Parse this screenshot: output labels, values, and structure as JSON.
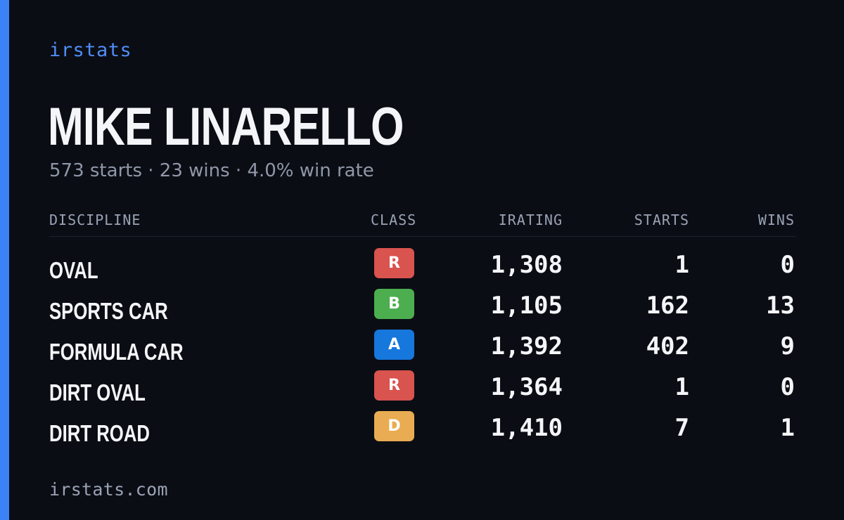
{
  "brand": "irstats",
  "driver": {
    "name": "MIKE LINARELLO",
    "summary": "573 starts · 23 wins · 4.0% win rate"
  },
  "table": {
    "headers": {
      "discipline": "DISCIPLINE",
      "class": "CLASS",
      "irating": "IRATING",
      "starts": "STARTS",
      "wins": "WINS"
    },
    "rows": [
      {
        "discipline": "OVAL",
        "class": "R",
        "class_color": "#d9534f",
        "irating": "1,308",
        "starts": "1",
        "wins": "0"
      },
      {
        "discipline": "SPORTS CAR",
        "class": "B",
        "class_color": "#4cae4f",
        "irating": "1,105",
        "starts": "162",
        "wins": "13"
      },
      {
        "discipline": "FORMULA CAR",
        "class": "A",
        "class_color": "#1677dd",
        "irating": "1,392",
        "starts": "402",
        "wins": "9"
      },
      {
        "discipline": "DIRT OVAL",
        "class": "R",
        "class_color": "#d9534f",
        "irating": "1,364",
        "starts": "1",
        "wins": "0"
      },
      {
        "discipline": "DIRT ROAD",
        "class": "D",
        "class_color": "#e9ac52",
        "irating": "1,410",
        "starts": "7",
        "wins": "1"
      }
    ]
  },
  "footer": "irstats.com",
  "colors": {
    "background": "#0b0d14",
    "accent": "#3b82f6",
    "brand": "#4f8ef7"
  }
}
